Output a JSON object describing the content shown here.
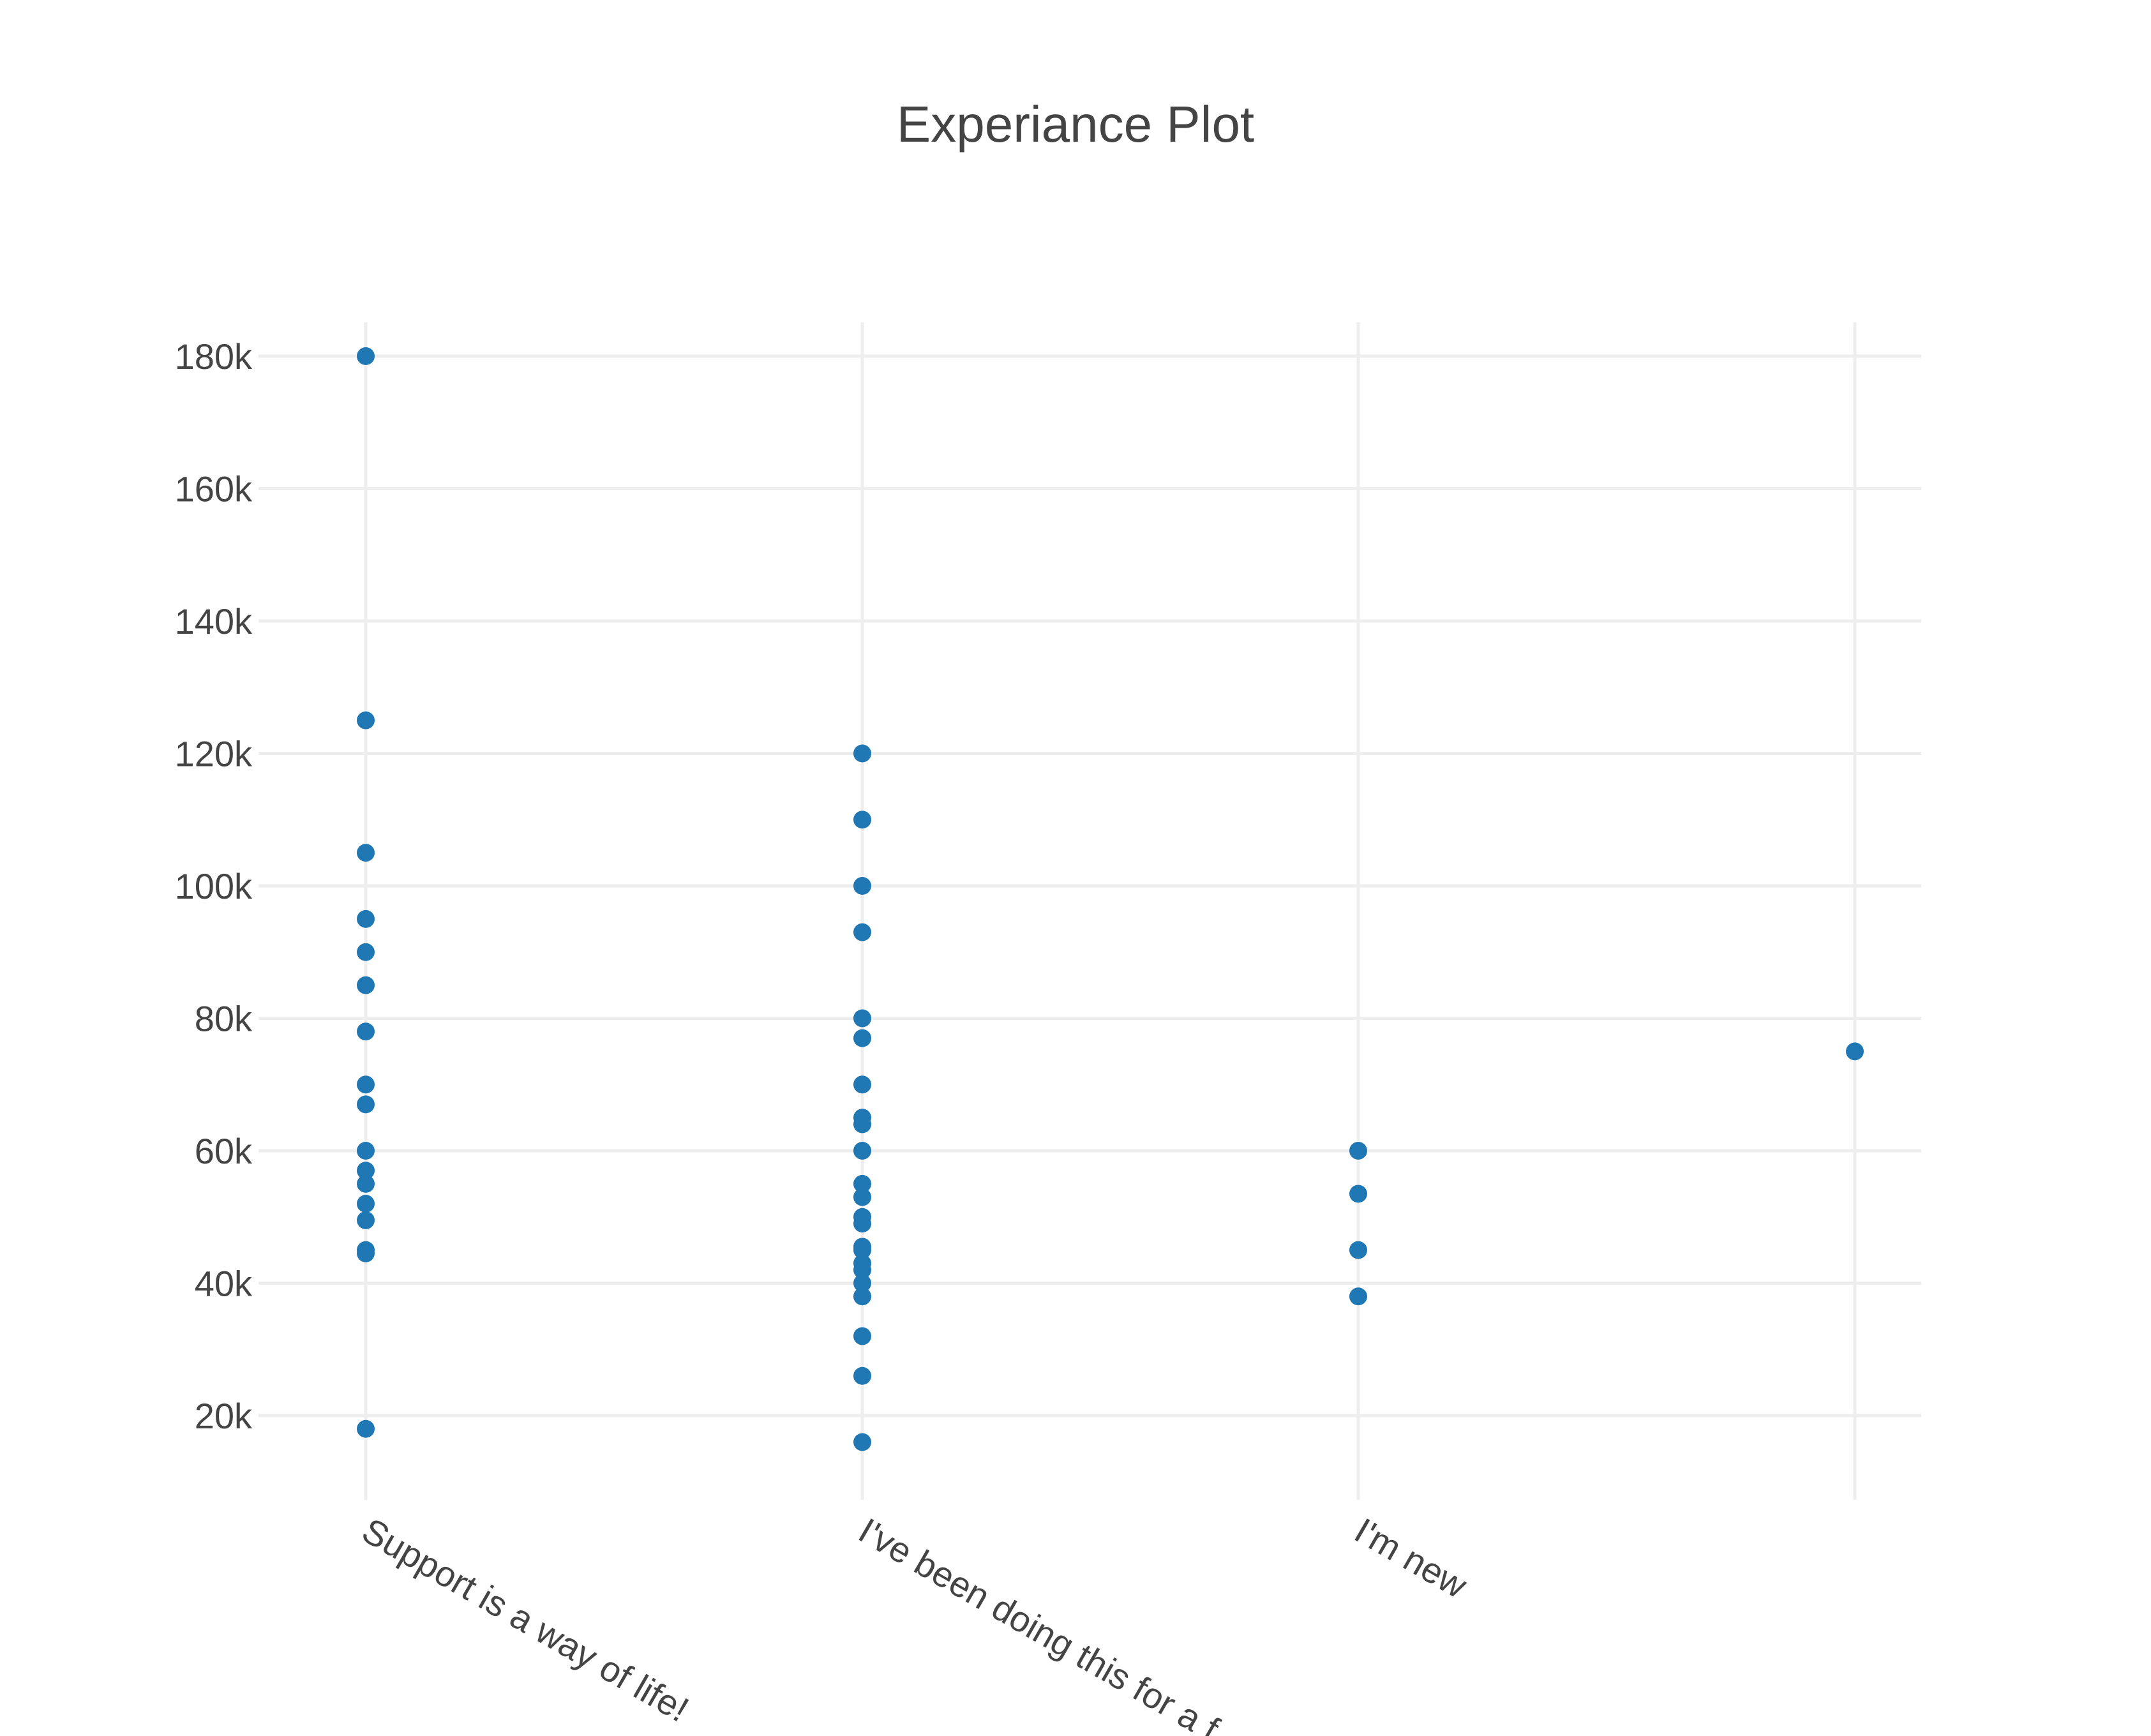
{
  "chart_data": {
    "type": "scatter",
    "title": "Experiance Plot",
    "xlabel": "",
    "ylabel": "",
    "x_categories": [
      "Support is a way of life!",
      "I've been doing this for a f",
      "I'm new",
      ""
    ],
    "y_ticks": [
      20000,
      40000,
      60000,
      80000,
      100000,
      120000,
      140000,
      160000,
      180000
    ],
    "y_tick_labels": [
      "20k",
      "40k",
      "60k",
      "80k",
      "100k",
      "120k",
      "140k",
      "160k",
      "180k"
    ],
    "ylim": [
      8000,
      185000
    ],
    "grid": true,
    "legend": "none",
    "marker_color": "#1f77b4",
    "grid_color": "#eeeeee",
    "text_color": "#444444",
    "series": [
      {
        "points": [
          {
            "x": "Support is a way of life!",
            "y": 180000
          },
          {
            "x": "Support is a way of life!",
            "y": 125000
          },
          {
            "x": "Support is a way of life!",
            "y": 105000
          },
          {
            "x": "Support is a way of life!",
            "y": 95000
          },
          {
            "x": "Support is a way of life!",
            "y": 90000
          },
          {
            "x": "Support is a way of life!",
            "y": 85000
          },
          {
            "x": "Support is a way of life!",
            "y": 78000
          },
          {
            "x": "Support is a way of life!",
            "y": 70000
          },
          {
            "x": "Support is a way of life!",
            "y": 67000
          },
          {
            "x": "Support is a way of life!",
            "y": 60000
          },
          {
            "x": "Support is a way of life!",
            "y": 57000
          },
          {
            "x": "Support is a way of life!",
            "y": 55000
          },
          {
            "x": "Support is a way of life!",
            "y": 52000
          },
          {
            "x": "Support is a way of life!",
            "y": 49500
          },
          {
            "x": "Support is a way of life!",
            "y": 45000
          },
          {
            "x": "Support is a way of life!",
            "y": 44500
          },
          {
            "x": "Support is a way of life!",
            "y": 18000
          },
          {
            "x": "I've been doing this for a f",
            "y": 120000
          },
          {
            "x": "I've been doing this for a f",
            "y": 110000
          },
          {
            "x": "I've been doing this for a f",
            "y": 100000
          },
          {
            "x": "I've been doing this for a f",
            "y": 93000
          },
          {
            "x": "I've been doing this for a f",
            "y": 80000
          },
          {
            "x": "I've been doing this for a f",
            "y": 77000
          },
          {
            "x": "I've been doing this for a f",
            "y": 70000
          },
          {
            "x": "I've been doing this for a f",
            "y": 65000
          },
          {
            "x": "I've been doing this for a f",
            "y": 64000
          },
          {
            "x": "I've been doing this for a f",
            "y": 60000
          },
          {
            "x": "I've been doing this for a f",
            "y": 55000
          },
          {
            "x": "I've been doing this for a f",
            "y": 53000
          },
          {
            "x": "I've been doing this for a f",
            "y": 50000
          },
          {
            "x": "I've been doing this for a f",
            "y": 49000
          },
          {
            "x": "I've been doing this for a f",
            "y": 45500
          },
          {
            "x": "I've been doing this for a f",
            "y": 45000
          },
          {
            "x": "I've been doing this for a f",
            "y": 43000
          },
          {
            "x": "I've been doing this for a f",
            "y": 42000
          },
          {
            "x": "I've been doing this for a f",
            "y": 40000
          },
          {
            "x": "I've been doing this for a f",
            "y": 38000
          },
          {
            "x": "I've been doing this for a f",
            "y": 32000
          },
          {
            "x": "I've been doing this for a f",
            "y": 26000
          },
          {
            "x": "I've been doing this for a f",
            "y": 16000
          },
          {
            "x": "I'm new",
            "y": 60000
          },
          {
            "x": "I'm new",
            "y": 53500
          },
          {
            "x": "I'm new",
            "y": 45000
          },
          {
            "x": "I'm new",
            "y": 38000
          },
          {
            "x": "",
            "y": 75000
          }
        ]
      }
    ]
  }
}
